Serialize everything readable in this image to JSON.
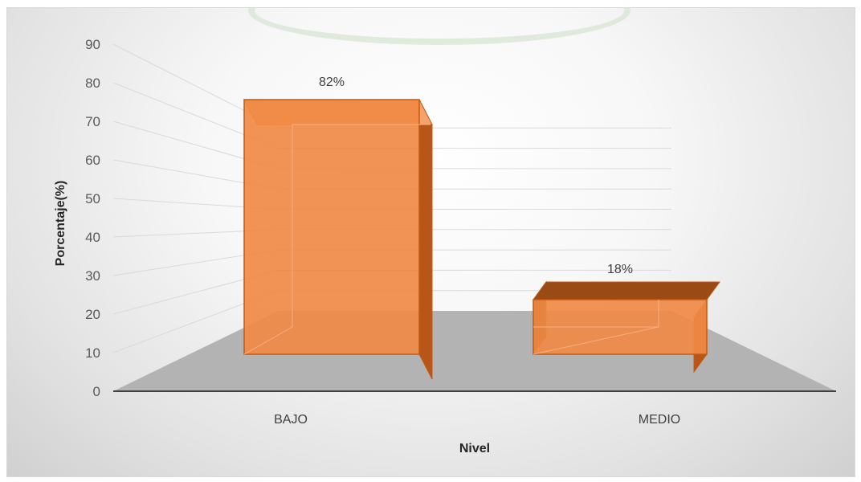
{
  "chart_data": {
    "type": "bar",
    "style": "3d-column",
    "categories": [
      "BAJO",
      "MEDIO"
    ],
    "values": [
      82,
      18
    ],
    "data_labels": [
      "82%",
      "18%"
    ],
    "xlabel": "Nivel",
    "ylabel": "Porcentaje(%)",
    "ylim": [
      0,
      90
    ],
    "yticks": [
      "0",
      "10",
      "20",
      "30",
      "40",
      "50",
      "60",
      "70",
      "80",
      "90"
    ],
    "grid": true,
    "legend": "none",
    "colors": {
      "bar": "#f08a45",
      "bar_edge": "#c55a11",
      "floor": "#b3b3b3",
      "wall_grid": "#d9d9d9"
    }
  }
}
